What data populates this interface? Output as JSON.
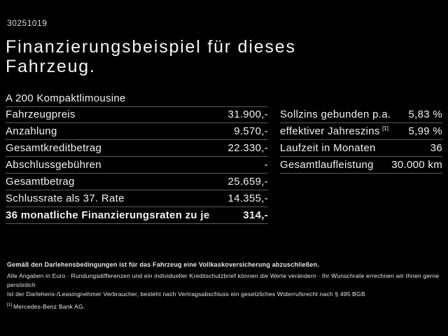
{
  "page": {
    "doc_number": "30251019",
    "title": "Finanzierungsbeispiel für dieses Fahrzeug.",
    "model": "A 200 Kompaktlimousine"
  },
  "left_table": {
    "rows": [
      {
        "label": "Fahrzeugpreis",
        "value": "31.900,-"
      },
      {
        "label": "Anzahlung",
        "value": "9.570,-"
      },
      {
        "label": "Gesamtkreditbetrag",
        "value": "22.330,-"
      },
      {
        "label": "Abschlussgebühren",
        "value": "-"
      },
      {
        "label": "Gesamtbetrag",
        "value": "25.659,-"
      },
      {
        "label": "Schlussrate als 37. Rate",
        "value": "14.355,-"
      },
      {
        "label": "36 monatliche Finanzierungsraten zu je",
        "value": "314,-",
        "bold": true
      }
    ]
  },
  "right_table": {
    "rows": [
      {
        "label": "Sollzins gebunden p.a.",
        "value": "5,83 %"
      },
      {
        "label": "effektiver Jahreszins",
        "sup": "[1]",
        "value": "5,99 %"
      },
      {
        "label": "Laufzeit in Monaten",
        "value": "36"
      },
      {
        "label": "Gesamtlaufleistung",
        "value": "30.000 km"
      }
    ]
  },
  "footer": {
    "bold_line": "Gemäß den Darlehensbedingungen ist für das Fahrzeug eine Vollkaskoversicherung abzuschließen.",
    "line2": "Alle Angaben in Euro · Rundungsdifferenzen und ein individueller Kreditschutzbrief können die Werte verändern · Ihr Wunschrate errechnen wir Ihnen gerne persönlich",
    "line3": "Ist der Darlehens-/Leasingnehmer Verbraucher, besteht nach Vertragsabschluss ein gesetzliches Widerrufsrecht nach § 495 BGB",
    "footnote_marker": "[1]",
    "footnote_text": "Mercedes-Benz Bank AG."
  },
  "colors": {
    "background": "#000000",
    "text": "#f2f2f2",
    "separator": "#5a5a5a"
  }
}
